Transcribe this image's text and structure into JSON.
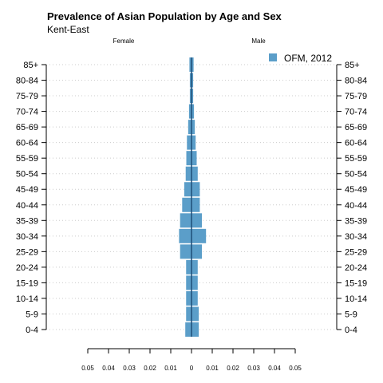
{
  "chart_data": {
    "type": "bar",
    "orientation": "horizontal-population-pyramid",
    "title": "Prevalence of Asian Population by Age and Sex",
    "subtitle": "Kent-East",
    "left_label": "Female",
    "right_label": "Male",
    "categories": [
      "0-4",
      "5-9",
      "10-14",
      "15-19",
      "20-24",
      "25-29",
      "30-34",
      "35-39",
      "40-44",
      "45-49",
      "50-54",
      "55-59",
      "60-64",
      "65-69",
      "70-74",
      "75-79",
      "80-84",
      "85+"
    ],
    "series": [
      {
        "name": "OFM, 2012",
        "color": "#5b9ec9",
        "female": [
          0.003,
          0.0026,
          0.0026,
          0.0026,
          0.0026,
          0.0055,
          0.006,
          0.0055,
          0.0045,
          0.0035,
          0.0028,
          0.0025,
          0.0022,
          0.0016,
          0.0012,
          0.0008,
          0.0008,
          0.001
        ],
        "male": [
          0.0035,
          0.0035,
          0.003,
          0.003,
          0.003,
          0.005,
          0.007,
          0.005,
          0.004,
          0.004,
          0.003,
          0.0025,
          0.002,
          0.0016,
          0.0012,
          0.0008,
          0.0008,
          0.001
        ]
      }
    ],
    "x_ticks": [
      "0.05",
      "0.04",
      "0.03",
      "0.02",
      "0.01",
      "0",
      "0.01",
      "0.02",
      "0.03",
      "0.04",
      "0.05"
    ],
    "xlim": [
      -0.05,
      0.05
    ],
    "legend_position": "top-right",
    "grid": "dotted horizontal"
  }
}
